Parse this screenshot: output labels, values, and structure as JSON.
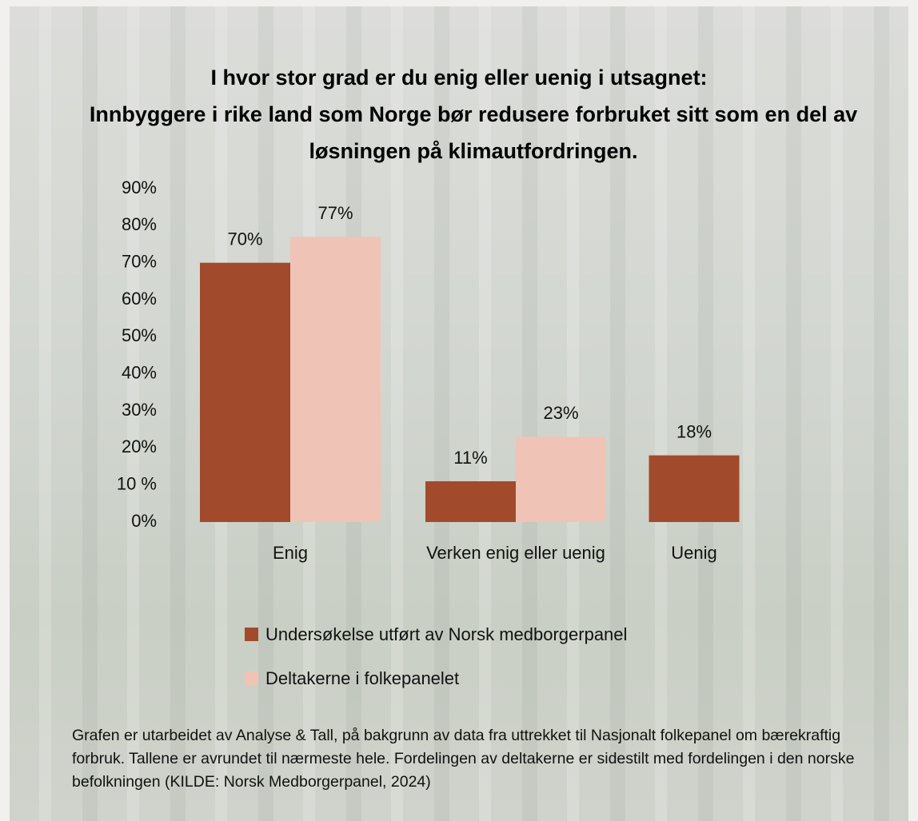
{
  "chart_data": {
    "type": "bar",
    "title": "I hvor stor grad er du enig eller uenig i utsagnet:",
    "subtitle": "Innbyggere i rike land som Norge bør redusere forbruket sitt som en del av løsningen på klimautfordringen.",
    "categories": [
      "Enig",
      "Verken enig eller uenig",
      "Uenig"
    ],
    "series": [
      {
        "name": "Undersøkelse utført av Norsk medborgerpanel",
        "color": "#a24a2c",
        "values": [
          70,
          11,
          18
        ],
        "value_labels": [
          "70%",
          "11%",
          "18%"
        ]
      },
      {
        "name": "Deltakerne i folkepanelet",
        "color": "#efc4b6",
        "values": [
          77,
          23,
          null
        ],
        "value_labels": [
          "77%",
          "23%",
          null
        ]
      }
    ],
    "ylim": [
      0,
      90
    ],
    "yticks": [
      {
        "value": 0,
        "label": "0%"
      },
      {
        "value": 10,
        "label": "10 %"
      },
      {
        "value": 20,
        "label": "20%"
      },
      {
        "value": 30,
        "label": "30%"
      },
      {
        "value": 40,
        "label": "40%"
      },
      {
        "value": 50,
        "label": "50%"
      },
      {
        "value": 60,
        "label": "60%"
      },
      {
        "value": 70,
        "label": "70%"
      },
      {
        "value": 80,
        "label": "80%"
      },
      {
        "value": 90,
        "label": "90%"
      }
    ],
    "grid": false,
    "legend": "bottom",
    "note": "Grafen er utarbeidet av Analyse & Tall, på bakgrunn av data fra uttrekket til Nasjonalt folkepanel om bærekraftig forbruk. Tallene er avrundet til nærmeste hele. Fordelingen av deltakerne er sidestilt med fordelingen i den norske befolkningen (KILDE: Norsk Medborgerpanel, 2024)"
  }
}
